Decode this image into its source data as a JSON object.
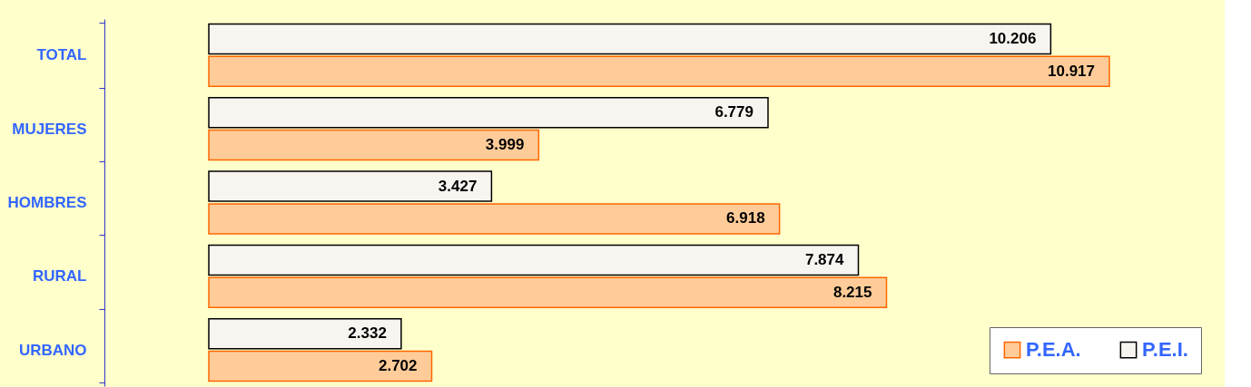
{
  "chart_data": {
    "type": "bar",
    "orientation": "horizontal",
    "categories": [
      "TOTAL",
      "MUJERES",
      "HOMBRES",
      "RURAL",
      "URBANO"
    ],
    "series": [
      {
        "name": "P.E.A.",
        "color": "#ffcc99",
        "values": [
          10.917,
          3.999,
          6.918,
          8.215,
          2.702
        ]
      },
      {
        "name": "P.E.I.",
        "color": "#f8f4f0",
        "values": [
          10.206,
          6.779,
          3.427,
          7.874,
          2.332
        ]
      }
    ],
    "data_labels": true,
    "legend": "bottom right",
    "grid": false,
    "tick_labels": "y"
  }
}
